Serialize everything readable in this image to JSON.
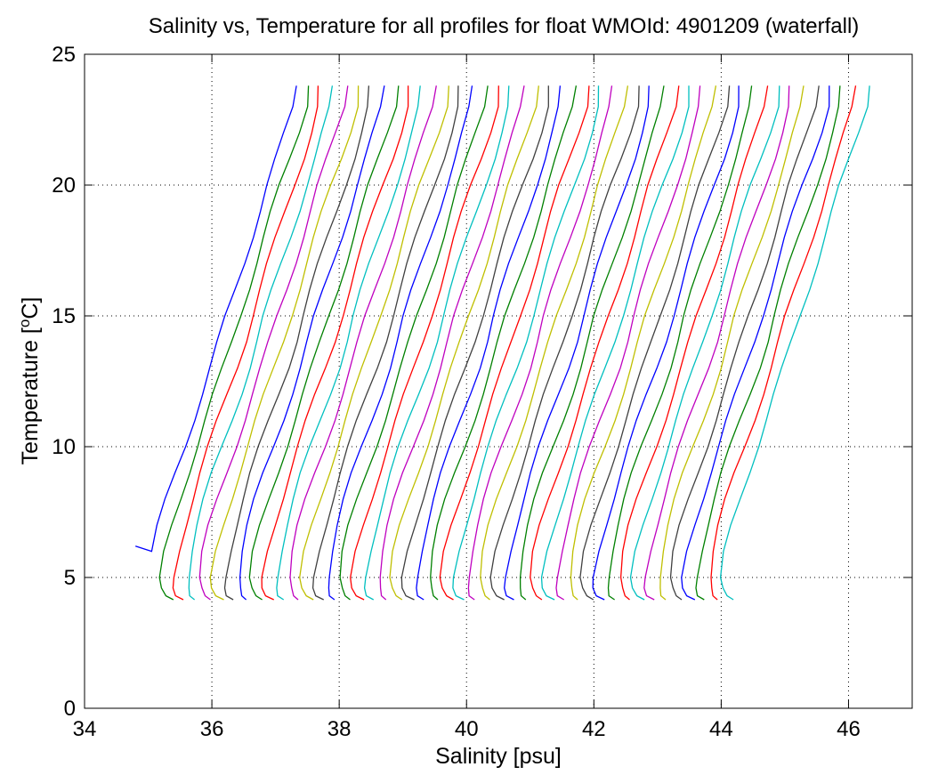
{
  "chart_data": {
    "type": "line",
    "title": "Salinity vs, Temperature for all profiles for float WMOId: 4901209 (waterfall)",
    "xlabel": "Salinity [psu]",
    "ylabel_main": "Temperature [",
    "ylabel_sup": "o",
    "ylabel_end": "C]",
    "xlim": [
      34,
      47
    ],
    "ylim": [
      0,
      25
    ],
    "xticks": [
      34,
      36,
      38,
      40,
      42,
      44,
      46
    ],
    "yticks": [
      0,
      5,
      10,
      15,
      20,
      25
    ],
    "grid": true,
    "grid_style": "dotted",
    "waterfall_offset_psu": 0.2,
    "base_profile": {
      "T": [
        4.15,
        4.3,
        4.6,
        5.0,
        6.0,
        7.0,
        8.0,
        9.0,
        10.0,
        11.0,
        12.0,
        13.0,
        14.0,
        15.0,
        16.0,
        17.0,
        18.0,
        19.0,
        20.0,
        21.0,
        22.0,
        23.0,
        23.8
      ],
      "S": [
        35.16,
        35.06,
        35.02,
        35.01,
        35.07,
        35.17,
        35.29,
        35.42,
        35.56,
        35.7,
        35.84,
        35.98,
        36.11,
        36.23,
        36.36,
        36.49,
        36.62,
        36.75,
        36.88,
        37.02,
        37.15,
        37.27,
        37.3
      ]
    },
    "series_colors": [
      "#0000ff",
      "#008000",
      "#ff0000",
      "#00bfbf",
      "#bf00bf",
      "#bfbf00",
      "#404040"
    ],
    "profile_count": 46,
    "first_profile_x_at_T6": 34.8
  }
}
